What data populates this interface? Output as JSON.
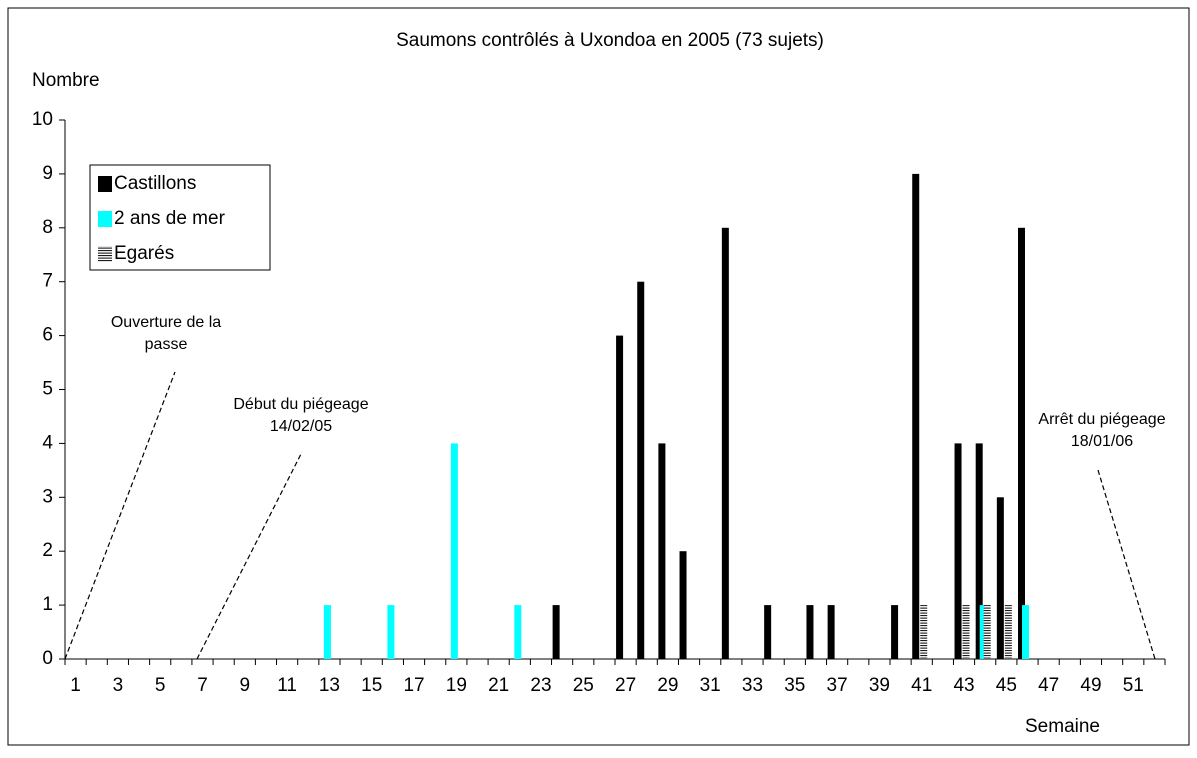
{
  "chart_data": {
    "type": "bar",
    "title": "Saumons contrôlés à Uxondoa en 2005 (73 sujets)",
    "y_label": "Nombre",
    "x_label": "Semaine",
    "categories": [
      1,
      null,
      3,
      null,
      5,
      null,
      7,
      null,
      9,
      null,
      11,
      null,
      13,
      null,
      15,
      null,
      17,
      null,
      19,
      null,
      21,
      null,
      23,
      null,
      25,
      null,
      27,
      null,
      29,
      null,
      31,
      null,
      33,
      null,
      35,
      null,
      37,
      null,
      39,
      null,
      41,
      null,
      43,
      null,
      45,
      null,
      47,
      null,
      49,
      null,
      51,
      null
    ],
    "series": [
      {
        "name": "Castillons",
        "color": "#000000",
        "values": [
          0,
          0,
          0,
          0,
          0,
          0,
          0,
          0,
          0,
          0,
          0,
          0,
          0,
          0,
          0,
          0,
          0,
          0,
          0,
          0,
          0,
          0,
          0,
          1,
          0,
          0,
          6,
          7,
          4,
          2,
          0,
          8,
          0,
          1,
          0,
          1,
          1,
          0,
          0,
          1,
          9,
          0,
          4,
          4,
          3,
          8,
          0,
          0,
          0,
          0,
          0,
          0
        ]
      },
      {
        "name": "2 ans de mer",
        "color": "#00ffff",
        "values": [
          0,
          0,
          0,
          0,
          0,
          0,
          0,
          0,
          0,
          0,
          0,
          0,
          1,
          0,
          0,
          1,
          0,
          0,
          4,
          0,
          0,
          1,
          0,
          0,
          0,
          0,
          0,
          0,
          0,
          0,
          0,
          0,
          0,
          0,
          0,
          0,
          0,
          0,
          0,
          0,
          0,
          0,
          0,
          1,
          0,
          1,
          0,
          0,
          0,
          0,
          0,
          0
        ]
      },
      {
        "name": "Egarés",
        "color": "hatch",
        "values": [
          0,
          0,
          0,
          0,
          0,
          0,
          0,
          0,
          0,
          0,
          0,
          0,
          0,
          0,
          0,
          0,
          0,
          0,
          0,
          0,
          0,
          0,
          0,
          0,
          0,
          0,
          0,
          0,
          0,
          0,
          0,
          0,
          0,
          0,
          0,
          0,
          0,
          0,
          0,
          0,
          1,
          0,
          1,
          1,
          1,
          0,
          0,
          0,
          0,
          0,
          0,
          0
        ]
      }
    ],
    "ylim": [
      0,
      10
    ],
    "yticks": [
      0,
      1,
      2,
      3,
      4,
      5,
      6,
      7,
      8,
      9,
      10
    ],
    "legend": "upper left",
    "annotations": [
      {
        "lines": [
          "Ouverture de la",
          "passe"
        ]
      },
      {
        "lines": [
          "Début du piégeage",
          "14/02/05"
        ]
      },
      {
        "lines": [
          "Arrêt du piégeage",
          "18/01/06"
        ]
      }
    ]
  }
}
